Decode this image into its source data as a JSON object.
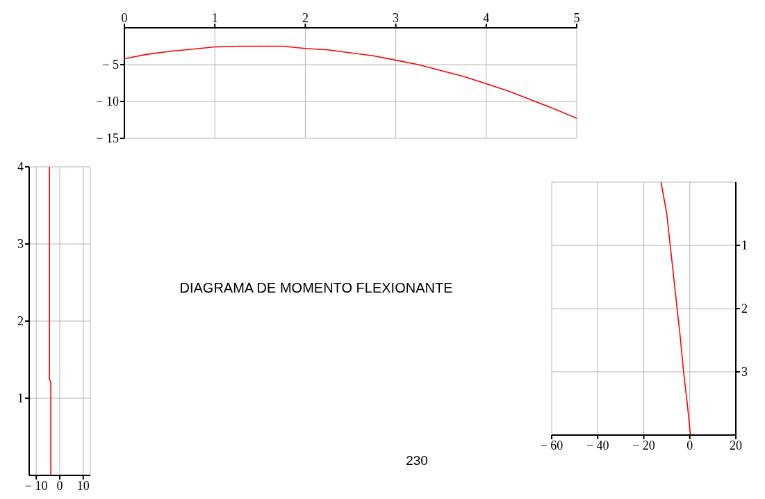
{
  "chart_data": [
    {
      "type": "line",
      "series": [
        {
          "color": "#ff0000",
          "x": [
            0,
            0.25,
            0.5,
            0.75,
            1,
            1.25,
            1.5,
            1.75,
            2,
            2.25,
            2.5,
            2.75,
            3,
            3.25,
            3.5,
            3.75,
            4,
            4.25,
            4.5,
            4.75,
            5
          ],
          "values": [
            -4.2,
            -3.6,
            -3.2,
            -2.9,
            -2.6,
            -2.5,
            -2.5,
            -2.5,
            -2.8,
            -3.0,
            -3.4,
            -3.8,
            -4.4,
            -5.0,
            -5.8,
            -6.6,
            -7.6,
            -8.6,
            -9.8,
            -11.0,
            -12.3
          ]
        }
      ],
      "xlim": [
        0,
        5
      ],
      "xticks": [
        0,
        1,
        2,
        3,
        4,
        5
      ],
      "ylim": [
        -15,
        0
      ],
      "yticks": [
        {
          "value": -5,
          "label": "− 5"
        },
        {
          "value": -10,
          "label": "− 10"
        },
        {
          "value": -15,
          "label": "− 15"
        }
      ],
      "grid": true
    },
    {
      "type": "line",
      "series": [
        {
          "color": "#ff0000",
          "x": [
            -3.8,
            -3.8,
            -4.4,
            -4.4
          ],
          "values": [
            0,
            1.2,
            1.25,
            4
          ]
        }
      ],
      "xlim": [
        -13,
        13
      ],
      "xticks": [
        {
          "value": -10,
          "label": "− 10"
        },
        0,
        10
      ],
      "ylim": [
        0,
        4
      ],
      "yticks": [
        1,
        2,
        3,
        4
      ],
      "grid": true
    },
    {
      "type": "line",
      "series": [
        {
          "color": "#ff0000",
          "x": [
            -12.5,
            -10,
            -8.5,
            -7,
            -5.5,
            -4,
            -2.7,
            -1.1,
            0.3
          ],
          "values": [
            0,
            0.5,
            1,
            1.5,
            2,
            2.5,
            3,
            3.5,
            4
          ]
        }
      ],
      "xlim": [
        -60,
        20
      ],
      "xticks": [
        {
          "value": -60,
          "label": "− 60"
        },
        {
          "value": -40,
          "label": "− 40"
        },
        {
          "value": -20,
          "label": "− 20"
        },
        0,
        20
      ],
      "ylim": [
        4,
        0
      ],
      "yticks": [
        1,
        2,
        3
      ],
      "grid": true
    },
    {
      "type": "other",
      "title": "DIAGRAMA DE MOMENTO FLEXIONANTE",
      "annotations": [
        "230"
      ]
    }
  ]
}
